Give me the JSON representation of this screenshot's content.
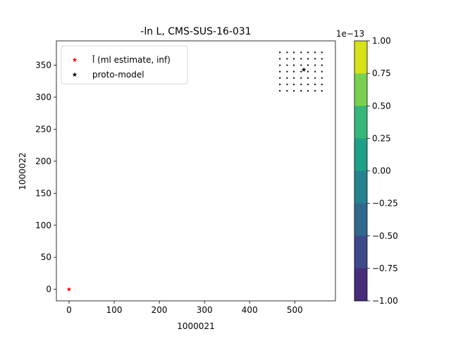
{
  "chart_data": {
    "type": "scatter",
    "title": "-ln L, CMS-SUS-16-031",
    "xlabel": "1000021",
    "ylabel": "1000022",
    "xlim": [
      -28,
      590
    ],
    "ylim": [
      -18,
      388
    ],
    "xticks": [
      0,
      100,
      200,
      300,
      400,
      500
    ],
    "yticks": [
      0,
      50,
      100,
      150,
      200,
      250,
      300,
      350
    ],
    "grid": false,
    "legend_position": "top-left",
    "series": [
      {
        "name": "l̂ (ml estimate, inf)",
        "marker": "star",
        "color": "#ff0000",
        "points": [
          [
            0,
            0
          ]
        ]
      },
      {
        "name": "proto-model",
        "marker": "star",
        "color": "#000000",
        "points": [
          [
            520,
            343
          ]
        ]
      }
    ],
    "grid_points": {
      "x": [
        467,
        483,
        498,
        514,
        529,
        545,
        560
      ],
      "y": [
        310,
        320,
        330,
        340,
        350,
        360,
        370
      ],
      "color": "#000000"
    },
    "colorbar": {
      "exponent_label": "1e−13",
      "ticks": [
        "1.00",
        "0.75",
        "0.50",
        "0.25",
        "0.00",
        "−0.25",
        "−0.50",
        "−0.75",
        "−1.00"
      ],
      "colors": [
        "#d8e219",
        "#7ad151",
        "#35b779",
        "#1fa088",
        "#26828e",
        "#31688e",
        "#3e4989",
        "#472d7b",
        "#440154"
      ]
    }
  }
}
